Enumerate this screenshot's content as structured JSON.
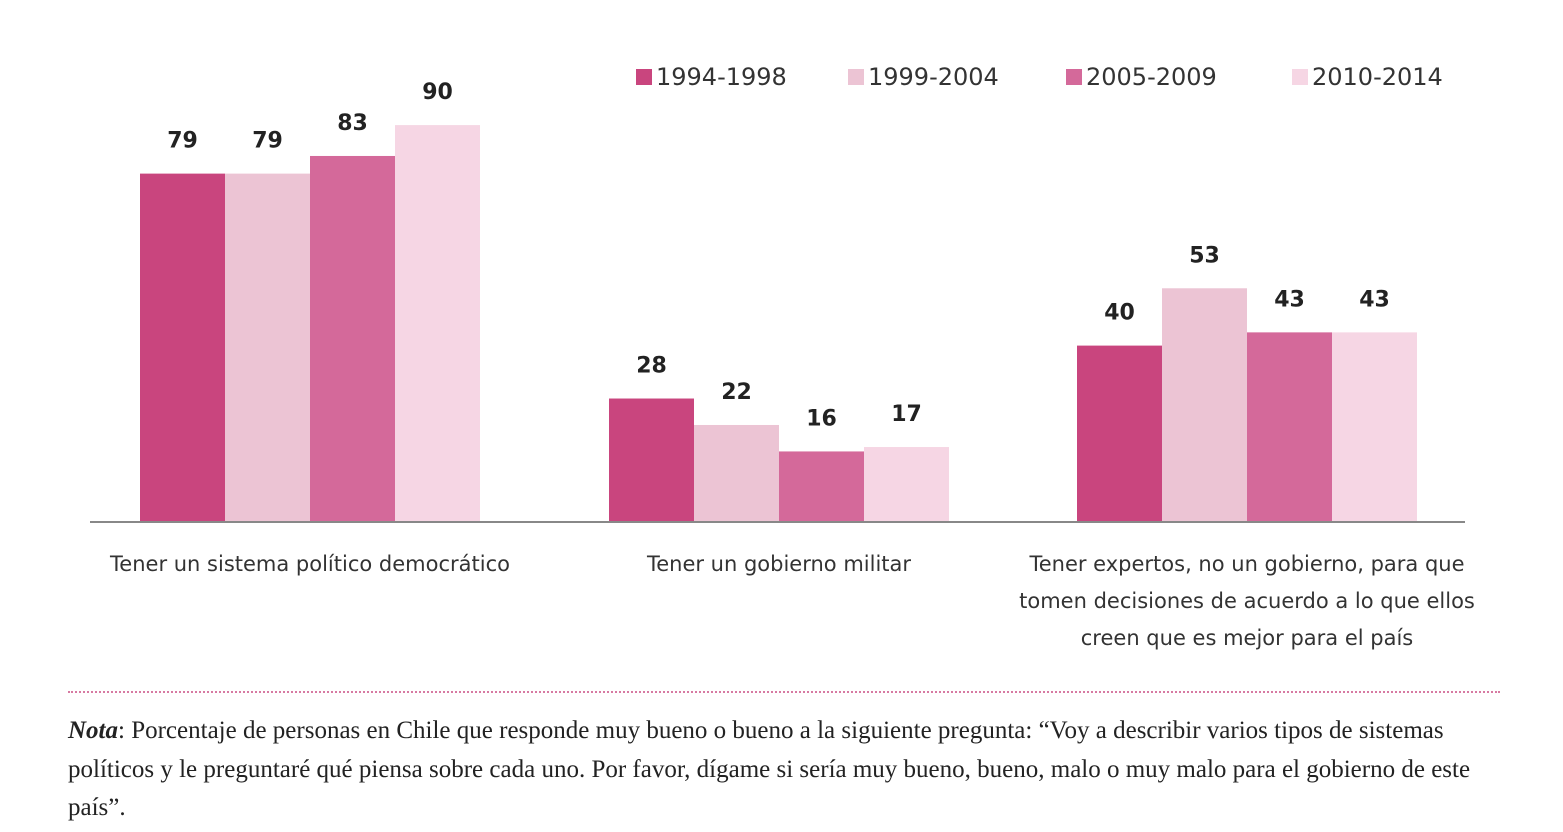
{
  "chart_data": {
    "type": "bar",
    "categories": [
      "Tener un sistema político democrático",
      "Tener un gobierno militar",
      "Tener expertos, no un gobierno, para que tomen decisiones de acuerdo a lo que ellos creen que es mejor para el país"
    ],
    "series": [
      {
        "name": "1994-1998",
        "color": "#c9457e",
        "values": [
          79,
          28,
          40
        ]
      },
      {
        "name": "1999-2004",
        "color": "#ecc4d4",
        "values": [
          79,
          22,
          53
        ]
      },
      {
        "name": "2005-2009",
        "color": "#d4699a",
        "values": [
          83,
          16,
          43
        ]
      },
      {
        "name": "2010-2014",
        "color": "#f6d6e4",
        "values": [
          90,
          17,
          43
        ]
      }
    ],
    "note_label": "Nota",
    "note": ": Porcentaje de personas en Chile que responde muy bueno o bueno a la siguiente pregunta: “Voy a describir varios tipos de sistemas políticos y le preguntaré qué piensa sobre cada uno. Por favor, dígame si sería muy bueno, bueno, malo o muy malo para el gobierno de este país”."
  }
}
